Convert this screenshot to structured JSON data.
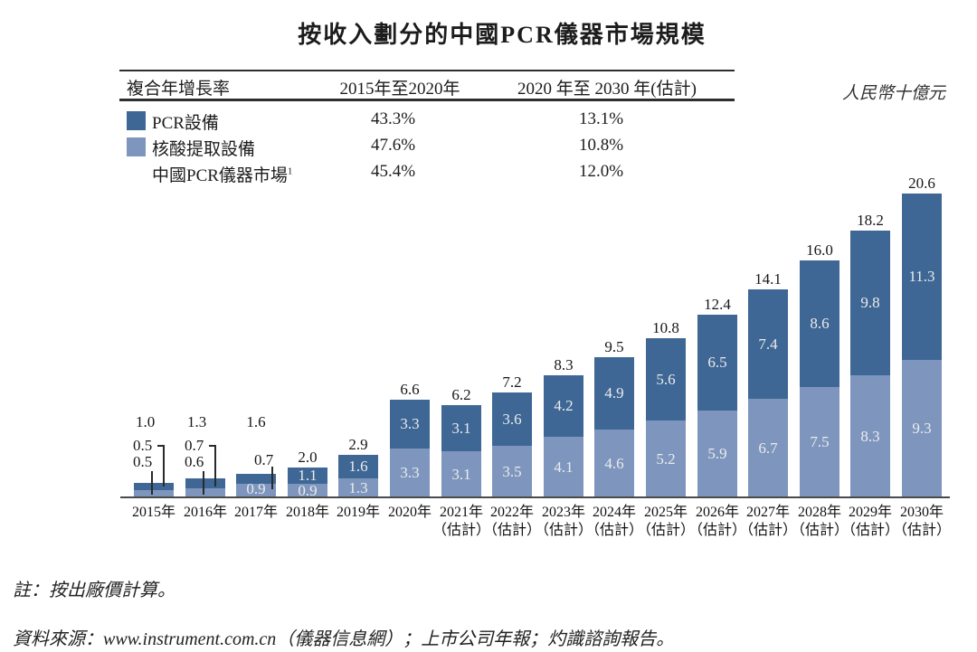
{
  "title": "按收入劃分的中國PCR儀器市場規模",
  "unit_label": "人民幣十億元",
  "colors": {
    "pcr_equipment": "#3e6795",
    "nucleic_acid_extraction": "#7e96be",
    "axis": "#4a4a4a",
    "inside_value_text": "#ebebeb"
  },
  "cagr_table": {
    "header": {
      "col1": "複合年增長率",
      "col2": "2015年至2020年",
      "col3": "2020 年至 2030 年(估計)"
    },
    "rows": [
      {
        "label": "PCR設備",
        "swatch": "dark",
        "period1": "43.3%",
        "period2": "13.1%"
      },
      {
        "label": "核酸提取設備",
        "swatch": "light",
        "period1": "47.6%",
        "period2": "10.8%"
      },
      {
        "label": "中國PCR儀器市場",
        "footnote_ref": "1",
        "swatch": "none",
        "period1": "45.4%",
        "period2": "12.0%"
      }
    ]
  },
  "chart_data": {
    "type": "bar",
    "stacked": true,
    "title": "按收入劃分的中國PCR儀器市場規模",
    "ylabel": "人民幣十億元",
    "ylim": [
      0,
      20.6
    ],
    "grid": false,
    "legend_position": "top-left-table",
    "categories": [
      "2015年",
      "2016年",
      "2017年",
      "2018年",
      "2019年",
      "2020年",
      "2021年",
      "2022年",
      "2023年",
      "2024年",
      "2025年",
      "2026年",
      "2027年",
      "2028年",
      "2029年",
      "2030年"
    ],
    "estimate_suffix": "（估計）",
    "estimate_from_index": 6,
    "series": [
      {
        "name": "PCR設備",
        "stack_position": "top",
        "color": "#3e6795",
        "values": [
          0.5,
          0.7,
          0.7,
          1.1,
          1.6,
          3.3,
          3.1,
          3.6,
          4.2,
          4.9,
          5.6,
          6.5,
          7.4,
          8.6,
          9.8,
          11.3
        ]
      },
      {
        "name": "核酸提取設備",
        "stack_position": "bottom",
        "color": "#7e96be",
        "values": [
          0.5,
          0.6,
          0.9,
          0.9,
          1.3,
          3.3,
          3.1,
          3.5,
          4.1,
          4.6,
          5.2,
          5.9,
          6.7,
          7.5,
          8.3,
          9.3
        ]
      }
    ],
    "totals": [
      1.0,
      1.3,
      1.6,
      2.0,
      2.9,
      6.6,
      6.2,
      7.2,
      8.3,
      9.5,
      10.8,
      12.4,
      14.1,
      16.0,
      18.2,
      20.6
    ]
  },
  "footnotes": {
    "note": "註：按出廠價計算。",
    "source": "資料來源：www.instrument.com.cn（儀器信息網）；上市公司年報；灼識諮詢報告。"
  }
}
